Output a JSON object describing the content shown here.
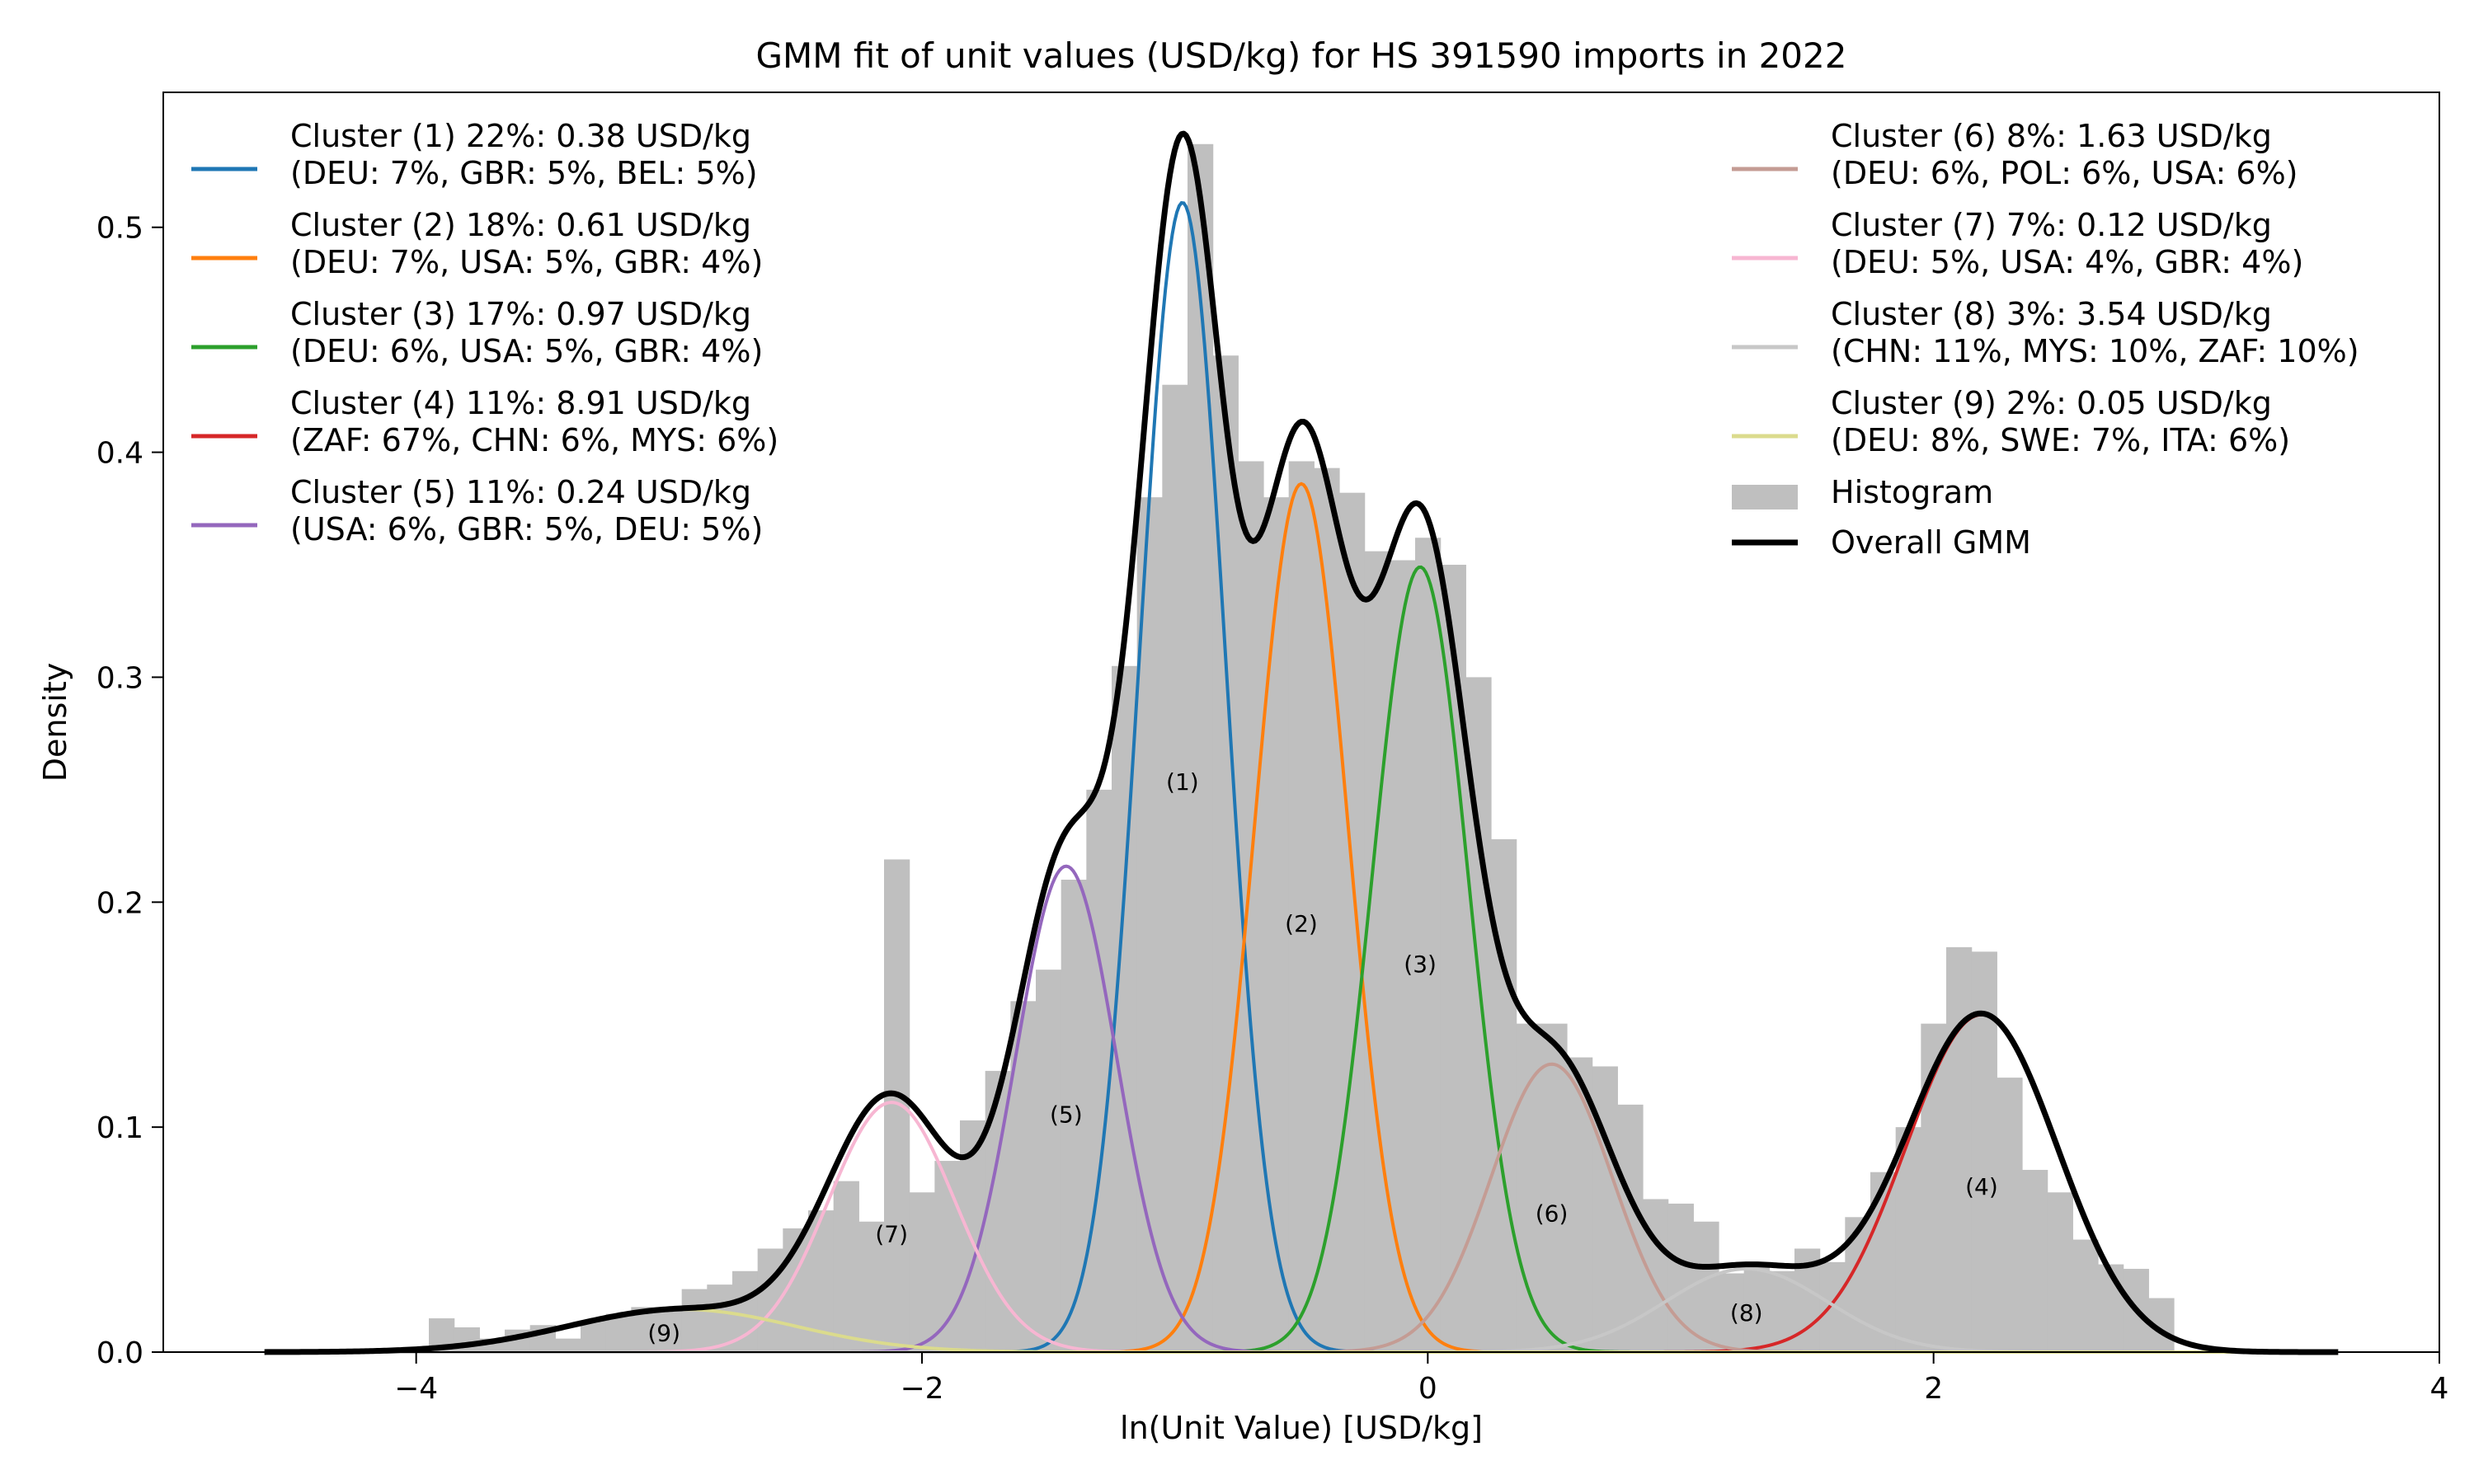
{
  "chart_data": {
    "type": "histogram",
    "title": "GMM fit of unit values (USD/kg) for HS 391590 imports in 2022",
    "xlabel": "ln(Unit Value) [USD/kg]",
    "ylabel": "Density",
    "xlim": [
      -5.0,
      4.0
    ],
    "ylim": [
      0.0,
      0.56
    ],
    "xticks": [
      -4,
      -2,
      0,
      2,
      4
    ],
    "xtick_labels": [
      "−4",
      "−2",
      "0",
      "2",
      "4"
    ],
    "yticks": [
      0.0,
      0.1,
      0.2,
      0.3,
      0.4,
      0.5
    ],
    "ytick_labels": [
      "0.0",
      "0.1",
      "0.2",
      "0.3",
      "0.4",
      "0.5"
    ],
    "grid": false,
    "legend_placement": "upper-left and upper-right columns",
    "histogram": {
      "name": "Histogram",
      "color": "#bfbfbf",
      "bin_width": 0.1,
      "bins": [
        {
          "x": -3.9,
          "y": 0.015
        },
        {
          "x": -3.8,
          "y": 0.011
        },
        {
          "x": -3.7,
          "y": 0.006
        },
        {
          "x": -3.6,
          "y": 0.01
        },
        {
          "x": -3.5,
          "y": 0.012
        },
        {
          "x": -3.4,
          "y": 0.006
        },
        {
          "x": -3.3,
          "y": 0.014
        },
        {
          "x": -3.2,
          "y": 0.017
        },
        {
          "x": -3.1,
          "y": 0.02
        },
        {
          "x": -3.0,
          "y": 0.02
        },
        {
          "x": -2.9,
          "y": 0.028
        },
        {
          "x": -2.8,
          "y": 0.03
        },
        {
          "x": -2.7,
          "y": 0.036
        },
        {
          "x": -2.6,
          "y": 0.046
        },
        {
          "x": -2.5,
          "y": 0.055
        },
        {
          "x": -2.4,
          "y": 0.063
        },
        {
          "x": -2.3,
          "y": 0.076
        },
        {
          "x": -2.2,
          "y": 0.058
        },
        {
          "x": -2.1,
          "y": 0.219
        },
        {
          "x": -2.0,
          "y": 0.071
        },
        {
          "x": -1.9,
          "y": 0.085
        },
        {
          "x": -1.8,
          "y": 0.103
        },
        {
          "x": -1.7,
          "y": 0.125
        },
        {
          "x": -1.6,
          "y": 0.156
        },
        {
          "x": -1.5,
          "y": 0.17
        },
        {
          "x": -1.4,
          "y": 0.21
        },
        {
          "x": -1.3,
          "y": 0.25
        },
        {
          "x": -1.2,
          "y": 0.305
        },
        {
          "x": -1.1,
          "y": 0.38
        },
        {
          "x": -1.0,
          "y": 0.43
        },
        {
          "x": -0.9,
          "y": 0.537
        },
        {
          "x": -0.8,
          "y": 0.443
        },
        {
          "x": -0.7,
          "y": 0.396
        },
        {
          "x": -0.6,
          "y": 0.38
        },
        {
          "x": -0.5,
          "y": 0.396
        },
        {
          "x": -0.4,
          "y": 0.393
        },
        {
          "x": -0.3,
          "y": 0.382
        },
        {
          "x": -0.2,
          "y": 0.356
        },
        {
          "x": -0.1,
          "y": 0.352
        },
        {
          "x": 0.0,
          "y": 0.362
        },
        {
          "x": 0.1,
          "y": 0.35
        },
        {
          "x": 0.2,
          "y": 0.3
        },
        {
          "x": 0.3,
          "y": 0.228
        },
        {
          "x": 0.4,
          "y": 0.146
        },
        {
          "x": 0.5,
          "y": 0.146
        },
        {
          "x": 0.6,
          "y": 0.131
        },
        {
          "x": 0.7,
          "y": 0.127
        },
        {
          "x": 0.8,
          "y": 0.11
        },
        {
          "x": 0.9,
          "y": 0.068
        },
        {
          "x": 1.0,
          "y": 0.066
        },
        {
          "x": 1.1,
          "y": 0.058
        },
        {
          "x": 1.2,
          "y": 0.035
        },
        {
          "x": 1.3,
          "y": 0.038
        },
        {
          "x": 1.4,
          "y": 0.036
        },
        {
          "x": 1.5,
          "y": 0.046
        },
        {
          "x": 1.6,
          "y": 0.04
        },
        {
          "x": 1.7,
          "y": 0.06
        },
        {
          "x": 1.8,
          "y": 0.08
        },
        {
          "x": 1.9,
          "y": 0.1
        },
        {
          "x": 2.0,
          "y": 0.146
        },
        {
          "x": 2.1,
          "y": 0.18
        },
        {
          "x": 2.2,
          "y": 0.178
        },
        {
          "x": 2.3,
          "y": 0.122
        },
        {
          "x": 2.4,
          "y": 0.081
        },
        {
          "x": 2.5,
          "y": 0.071
        },
        {
          "x": 2.6,
          "y": 0.05
        },
        {
          "x": 2.7,
          "y": 0.039
        },
        {
          "x": 2.8,
          "y": 0.037
        },
        {
          "x": 2.9,
          "y": 0.024
        }
      ]
    },
    "clusters": [
      {
        "id": "1",
        "label": "(1)",
        "name": "Cluster (1) 22%: 0.38 USD/kg",
        "detail": "(DEU: 7%, GBR: 5%, BEL: 5%)",
        "color": "#1f77b4",
        "mean": -0.97,
        "sd": 0.17,
        "peak": 0.511,
        "label_x": -0.97,
        "label_y": 0.25
      },
      {
        "id": "2",
        "label": "(2)",
        "name": "Cluster (2) 18%: 0.61 USD/kg",
        "detail": "(DEU: 7%, USA: 5%, GBR: 4%)",
        "color": "#ff7f0e",
        "mean": -0.5,
        "sd": 0.185,
        "peak": 0.386,
        "label_x": -0.5,
        "label_y": 0.187
      },
      {
        "id": "3",
        "label": "(3)",
        "name": "Cluster (3) 17%: 0.97 USD/kg",
        "detail": "(DEU: 6%, USA: 5%, GBR: 4%)",
        "color": "#2ca02c",
        "mean": -0.03,
        "sd": 0.19,
        "peak": 0.349,
        "label_x": -0.03,
        "label_y": 0.169
      },
      {
        "id": "4",
        "label": "(4)",
        "name": "Cluster (4) 11%: 8.91 USD/kg",
        "detail": "(ZAF: 67%, CHN: 6%, MYS: 6%)",
        "color": "#d62728",
        "mean": 2.19,
        "sd": 0.3,
        "peak": 0.15,
        "label_x": 2.19,
        "label_y": 0.07
      },
      {
        "id": "5",
        "label": "(5)",
        "name": "Cluster (5) 11%: 0.24 USD/kg",
        "detail": "(USA: 6%, GBR: 5%, DEU: 5%)",
        "color": "#9467bd",
        "mean": -1.43,
        "sd": 0.2,
        "peak": 0.216,
        "label_x": -1.43,
        "label_y": 0.102
      },
      {
        "id": "6",
        "label": "(6)",
        "name": "Cluster (6) 8%: 1.63 USD/kg",
        "detail": "(DEU: 6%, POL: 6%, USA: 6%)",
        "color": "#c49c94",
        "mean": 0.49,
        "sd": 0.24,
        "peak": 0.128,
        "label_x": 0.49,
        "label_y": 0.058
      },
      {
        "id": "7",
        "label": "(7)",
        "name": "Cluster (7) 7%: 0.12 USD/kg",
        "detail": "(DEU: 5%, USA: 4%, GBR: 4%)",
        "color": "#f7b6d2",
        "mean": -2.12,
        "sd": 0.25,
        "peak": 0.111,
        "label_x": -2.12,
        "label_y": 0.049
      },
      {
        "id": "8",
        "label": "(8)",
        "name": "Cluster (8) 3%: 3.54 USD/kg",
        "detail": "(CHN: 11%, MYS: 10%, ZAF: 10%)",
        "color": "#c7c7c7",
        "mean": 1.26,
        "sd": 0.32,
        "peak": 0.037,
        "label_x": 1.26,
        "label_y": 0.014
      },
      {
        "id": "9",
        "label": "(9)",
        "name": "Cluster (9) 2%: 0.05 USD/kg",
        "detail": "(DEU: 8%, SWE: 7%, ITA: 6%)",
        "color": "#dbdb8d",
        "mean": -2.95,
        "sd": 0.45,
        "peak": 0.019,
        "label_x": -3.02,
        "label_y": 0.005
      }
    ],
    "overall": {
      "name": "Overall GMM",
      "color": "#000000",
      "x_range": [
        -4.6,
        3.6
      ]
    },
    "legend_left": [
      "1",
      "2",
      "3",
      "4",
      "5"
    ],
    "legend_right": [
      "6",
      "7",
      "8",
      "9"
    ]
  }
}
